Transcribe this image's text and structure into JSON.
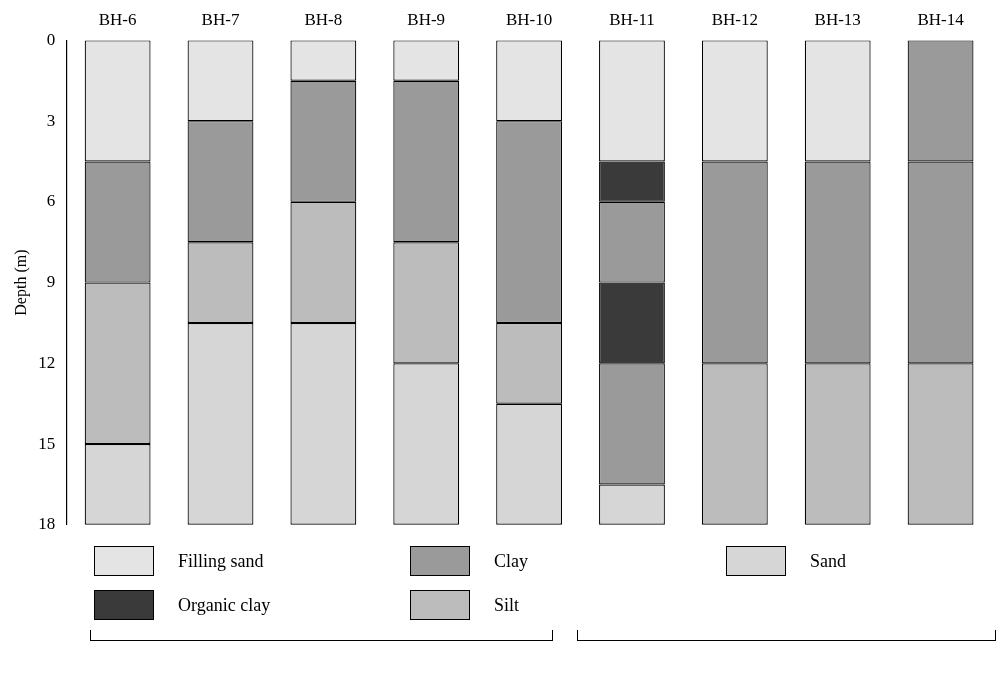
{
  "chart_data": {
    "type": "bar",
    "ylabel": "Depth (m)",
    "categories": [
      "BH-6",
      "BH-7",
      "BH-8",
      "BH-9",
      "BH-10",
      "BH-11",
      "BH-12",
      "BH-13",
      "BH-14"
    ],
    "ylim": [
      18,
      0
    ],
    "yticks": [
      0,
      3,
      6,
      9,
      12,
      15,
      18
    ],
    "legend": "bottom",
    "series": [
      {
        "name": "Filling sand",
        "color": "#e4e4e4",
        "values": [
          4.5,
          3,
          1.5,
          1.5,
          3,
          4.5,
          4.5,
          4.5,
          null
        ],
        "base": [
          0,
          0,
          0,
          0,
          0,
          0,
          0,
          0,
          null
        ]
      },
      {
        "name": "Clay",
        "color": "#9a9a9a",
        "values": [
          4.5,
          4.5,
          4.5,
          6,
          7.5,
          3,
          7.5,
          7.5,
          4.5
        ],
        "base": [
          4.5,
          3,
          1.5,
          1.5,
          3,
          6,
          4.5,
          4.5,
          0
        ]
      },
      {
        "name": "Sand",
        "color": "#d6d6d6",
        "values": [
          3,
          7.5,
          7.5,
          6,
          4.5,
          1.5,
          null,
          null,
          null
        ],
        "base": [
          15,
          10.5,
          10.5,
          12,
          13.5,
          16.5,
          null,
          null,
          null
        ]
      },
      {
        "name": "Organic clay",
        "color": "#3a3a3a",
        "values": [
          null,
          null,
          null,
          null,
          null,
          1.5,
          null,
          null,
          null
        ],
        "base": [
          null,
          null,
          null,
          null,
          null,
          4.5,
          null,
          null,
          null
        ]
      },
      {
        "name": "Silt",
        "color": "#bcbcbc",
        "values": [
          6,
          3,
          4.5,
          4.5,
          3,
          null,
          6,
          6,
          6
        ],
        "base": [
          9,
          7.5,
          6,
          7.5,
          10.5,
          null,
          12,
          12,
          12
        ]
      },
      {
        "color": "#9a9a9a",
        "values": [
          null,
          null,
          null,
          null,
          null,
          4.5,
          null,
          null,
          7.5
        ],
        "base": [
          null,
          null,
          null,
          null,
          null,
          12,
          null,
          null,
          4.5
        ]
      },
      {
        "color": "#3a3a3a",
        "values": [
          null,
          null,
          null,
          null,
          null,
          3,
          null,
          null,
          null
        ],
        "base": [
          null,
          null,
          null,
          null,
          null,
          9,
          null,
          null,
          null
        ]
      }
    ]
  }
}
